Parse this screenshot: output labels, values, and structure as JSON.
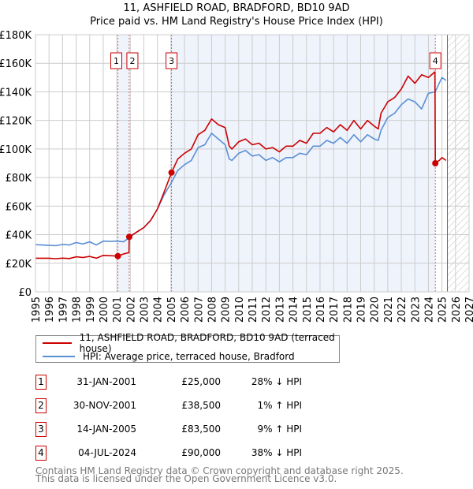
{
  "title_line1": "11, ASHFIELD ROAD, BRADFORD, BD10 9AD",
  "title_line2": "Price paid vs. HM Land Registry's House Price Index (HPI)",
  "colors": {
    "property": "#cc0000",
    "hpi": "#5b8fd4",
    "shade": "#eef3fc",
    "grid": "#cccccc"
  },
  "legend": {
    "property_label": "11, ASHFIELD ROAD, BRADFORD, BD10 9AD (terraced house)",
    "hpi_label": "HPI: Average price, terraced house, Bradford"
  },
  "transactions": [
    {
      "num": "1",
      "date": "31-JAN-2001",
      "price": "£25,000",
      "hpi": "28% ↓ HPI"
    },
    {
      "num": "2",
      "date": "30-NOV-2001",
      "price": "£38,500",
      "hpi": "1% ↑ HPI"
    },
    {
      "num": "3",
      "date": "14-JAN-2005",
      "price": "£83,500",
      "hpi": "9% ↑ HPI"
    },
    {
      "num": "4",
      "date": "04-JUL-2024",
      "price": "£90,000",
      "hpi": "38% ↓ HPI"
    }
  ],
  "footer": {
    "line1": "Contains HM Land Registry data © Crown copyright and database right 2025.",
    "line2": "This data is licensed under the Open Government Licence v3.0."
  },
  "chart_data": {
    "type": "line",
    "xlim": [
      1995,
      2027
    ],
    "ylim": [
      0,
      180000
    ],
    "grid": true,
    "x_ticks": [
      "1995",
      "1996",
      "1997",
      "1998",
      "1999",
      "2000",
      "2001",
      "2002",
      "2003",
      "2004",
      "2005",
      "2006",
      "2007",
      "2008",
      "2009",
      "2010",
      "2011",
      "2012",
      "2013",
      "2014",
      "2015",
      "2016",
      "2017",
      "2018",
      "2019",
      "2020",
      "2021",
      "2022",
      "2023",
      "2024",
      "2025",
      "2026",
      "2027"
    ],
    "y_ticks": [
      {
        "value": 0,
        "label": "£0"
      },
      {
        "value": 20000,
        "label": "£20K"
      },
      {
        "value": 40000,
        "label": "£40K"
      },
      {
        "value": 60000,
        "label": "£60K"
      },
      {
        "value": 80000,
        "label": "£80K"
      },
      {
        "value": 100000,
        "label": "£100K"
      },
      {
        "value": 120000,
        "label": "£120K"
      },
      {
        "value": 140000,
        "label": "£140K"
      },
      {
        "value": 160000,
        "label": "£160K"
      },
      {
        "value": 180000,
        "label": "£180K"
      }
    ],
    "shaded_ranges": [
      [
        2001.08,
        2001.92
      ],
      [
        2005.04,
        2024.51
      ]
    ],
    "forecast_start": 2025.4,
    "sales": [
      {
        "label": "1",
        "x": 2001.08,
        "y": 25000
      },
      {
        "label": "2",
        "x": 2001.92,
        "y": 38500
      },
      {
        "label": "3",
        "x": 2005.04,
        "y": 83500
      },
      {
        "label": "4",
        "x": 2024.51,
        "y": 90000
      }
    ],
    "series": [
      {
        "name": "11, ASHFIELD ROAD, BRADFORD, BD10 9AD (terraced house)",
        "color": "#cc0000",
        "x": [
          1995,
          1996,
          1996.5,
          1997,
          1997.5,
          1998,
          1998.5,
          1999,
          1999.5,
          2000,
          2000.5,
          2001.08,
          2001.5,
          2001.9,
          2001.92,
          2002.5,
          2003,
          2003.5,
          2004,
          2004.5,
          2005.04,
          2005.5,
          2006,
          2006.5,
          2007,
          2007.5,
          2008,
          2008.5,
          2009,
          2009.3,
          2009.5,
          2010,
          2010.5,
          2011,
          2011.5,
          2012,
          2012.5,
          2013,
          2013.5,
          2014,
          2014.5,
          2015,
          2015.5,
          2016,
          2016.5,
          2017,
          2017.5,
          2018,
          2018.5,
          2019,
          2019.5,
          2020,
          2020.3,
          2020.5,
          2021,
          2021.5,
          2022,
          2022.5,
          2023,
          2023.5,
          2024,
          2024.48,
          2024.51,
          2024.8,
          2025,
          2025.3
        ],
        "y": [
          23500,
          23500,
          23200,
          23600,
          23300,
          24500,
          24000,
          24800,
          23500,
          25500,
          25300,
          25000,
          26500,
          27500,
          38500,
          42000,
          45000,
          50000,
          58000,
          70000,
          83500,
          93000,
          97000,
          100000,
          110000,
          113000,
          121000,
          117000,
          115000,
          102000,
          100000,
          105000,
          107000,
          103000,
          104000,
          100000,
          101000,
          98000,
          102000,
          102000,
          106000,
          104000,
          111000,
          111000,
          115000,
          112000,
          117000,
          113000,
          120000,
          114000,
          120000,
          116000,
          114000,
          125000,
          133000,
          136000,
          142000,
          151000,
          146000,
          152000,
          150000,
          154000,
          90000,
          92000,
          94000,
          92000
        ]
      },
      {
        "name": "HPI: Average price, terraced house, Bradford",
        "color": "#5b8fd4",
        "x": [
          1995,
          1996,
          1996.5,
          1997,
          1997.5,
          1998,
          1998.5,
          1999,
          1999.5,
          2000,
          2000.5,
          2001,
          2001.5,
          2002,
          2002.5,
          2003,
          2003.5,
          2004,
          2004.5,
          2005,
          2005.5,
          2006,
          2006.5,
          2007,
          2007.5,
          2008,
          2008.5,
          2009,
          2009.3,
          2009.5,
          2010,
          2010.5,
          2011,
          2011.5,
          2012,
          2012.5,
          2013,
          2013.5,
          2014,
          2014.5,
          2015,
          2015.5,
          2016,
          2016.5,
          2017,
          2017.5,
          2018,
          2018.5,
          2019,
          2019.5,
          2020,
          2020.3,
          2020.5,
          2021,
          2021.5,
          2022,
          2022.5,
          2023,
          2023.5,
          2024,
          2024.5,
          2025,
          2025.3
        ],
        "y": [
          33000,
          32500,
          32300,
          33200,
          32800,
          34500,
          33500,
          35000,
          32800,
          35500,
          35300,
          35500,
          35000,
          38500,
          42000,
          45000,
          50000,
          58000,
          68000,
          76000,
          85000,
          89000,
          92000,
          101000,
          103000,
          111000,
          107000,
          103000,
          93000,
          92000,
          97000,
          99000,
          95000,
          96000,
          92000,
          94000,
          91000,
          94000,
          94000,
          97000,
          96000,
          102000,
          102000,
          106000,
          104000,
          108000,
          104000,
          110000,
          105000,
          110000,
          107000,
          106000,
          113000,
          122000,
          125000,
          131000,
          135000,
          133000,
          128000,
          139000,
          140000,
          150000,
          148000
        ]
      }
    ]
  }
}
